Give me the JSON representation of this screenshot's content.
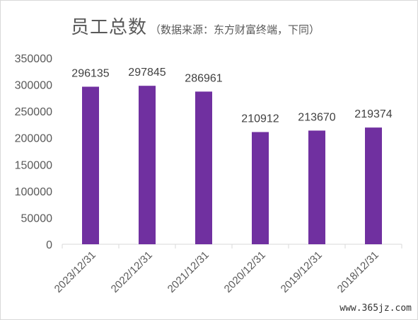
{
  "chart_data": {
    "type": "bar",
    "title": "员工总数",
    "subtitle": "（数据来源：东方财富终端，下同）",
    "categories": [
      "2023/12/31",
      "2022/12/31",
      "2021/12/31",
      "2020/12/31",
      "2019/12/31",
      "2018/12/31"
    ],
    "values": [
      296135,
      297845,
      286961,
      210912,
      213670,
      219374
    ],
    "data_labels": [
      "296135",
      "297845",
      "286961",
      "210912",
      "213670",
      "219374"
    ],
    "yticks": [
      0,
      50000,
      100000,
      150000,
      200000,
      250000,
      300000,
      350000
    ],
    "ylim": [
      0,
      350000
    ],
    "xlabel": "",
    "ylabel": "",
    "grid": false,
    "legend": "none",
    "bar_color": "#7030a0",
    "axis_color": "#d9d9d9",
    "text_color": "#595959"
  },
  "watermark": "www.365jz.com"
}
